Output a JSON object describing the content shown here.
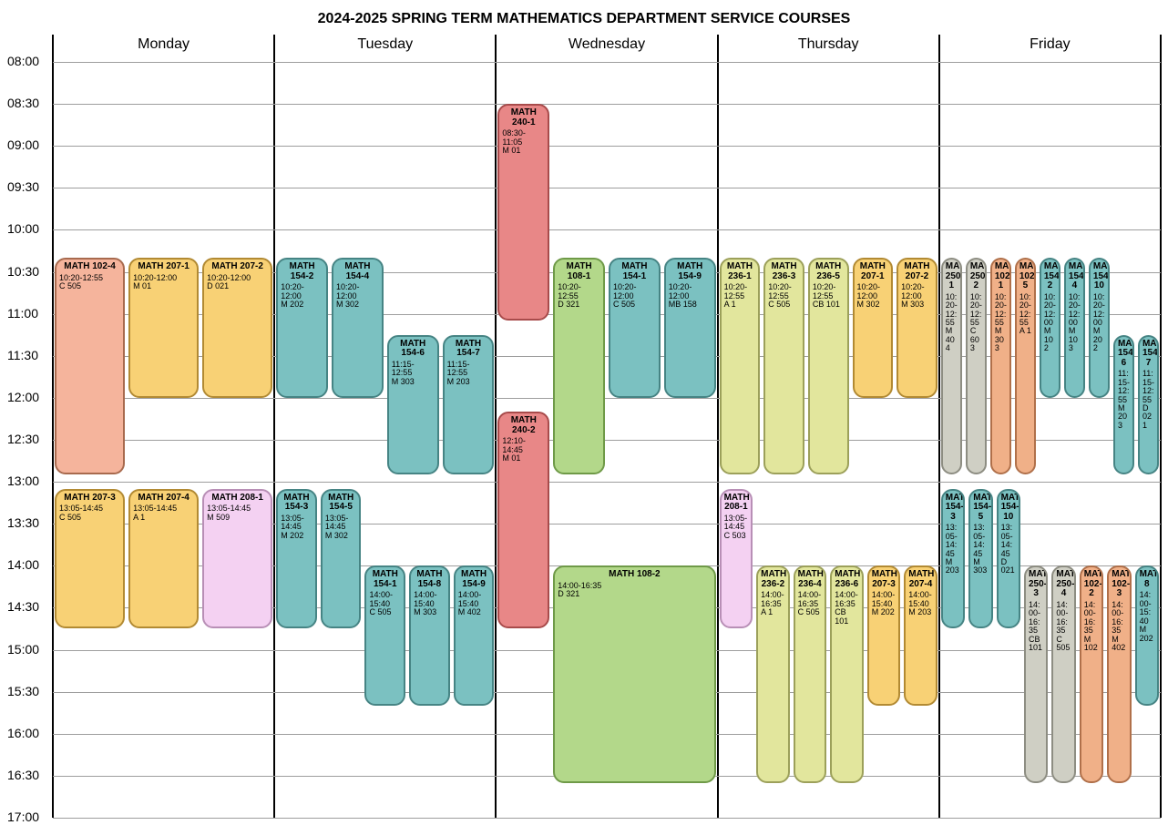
{
  "title": "2024-2025 SPRING TERM MATHEMATICS DEPARTMENT SERVICE COURSES",
  "layout": {
    "timeColWidth": 50,
    "dayWidth": 243.2,
    "headerHeight": 30,
    "minutesStart": 480,
    "minutesEnd": 1020,
    "pxPerMinute": 1.537,
    "blockGap": 2
  },
  "days": [
    "Monday",
    "Tuesday",
    "Wednesday",
    "Thursday",
    "Friday"
  ],
  "timeSlots": [
    "08:00",
    "08:30",
    "09:00",
    "09:30",
    "10:00",
    "10:30",
    "11:00",
    "11:30",
    "12:00",
    "12:30",
    "13:00",
    "13:30",
    "14:00",
    "14:30",
    "15:00",
    "15:30",
    "16:00",
    "16:30",
    "17:00"
  ],
  "colors": {
    "salmon": {
      "fill": "#f5b49c",
      "border": "#a86a4e"
    },
    "amber": {
      "fill": "#f8d175",
      "border": "#b28a33"
    },
    "teal": {
      "fill": "#7bc1c1",
      "border": "#468484"
    },
    "red": {
      "fill": "#e88787",
      "border": "#a84b4b"
    },
    "green": {
      "fill": "#b3d88a",
      "border": "#6f9a48"
    },
    "olive": {
      "fill": "#e2e69d",
      "border": "#9ca05a"
    },
    "pink": {
      "fill": "#f4d1f2",
      "border": "#b88fb6"
    },
    "grey": {
      "fill": "#cfcfc4",
      "border": "#8d8d82"
    },
    "orange": {
      "fill": "#f0b088",
      "border": "#b0704a"
    }
  },
  "blocks": [
    {
      "day": 0,
      "lane": 0,
      "lanes": 3,
      "code": "MATH 102-4",
      "time": "10:20-12:55",
      "room": "C 505",
      "start": 620,
      "end": 775,
      "color": "salmon"
    },
    {
      "day": 0,
      "lane": 1,
      "lanes": 3,
      "code": "MATH 207-1",
      "time": "10:20-12:00",
      "room": "M 01",
      "start": 620,
      "end": 720,
      "color": "amber"
    },
    {
      "day": 0,
      "lane": 2,
      "lanes": 3,
      "code": "MATH 207-2",
      "time": "10:20-12:00",
      "room": "D 021",
      "start": 620,
      "end": 720,
      "color": "amber"
    },
    {
      "day": 0,
      "lane": 0,
      "lanes": 3,
      "code": "MATH 207-3",
      "time": "13:05-14:45",
      "room": "C 505",
      "start": 785,
      "end": 885,
      "color": "amber"
    },
    {
      "day": 0,
      "lane": 1,
      "lanes": 3,
      "code": "MATH 207-4",
      "time": "13:05-14:45",
      "room": "A 1",
      "start": 785,
      "end": 885,
      "color": "amber"
    },
    {
      "day": 0,
      "lane": 2,
      "lanes": 3,
      "code": "MATH 208-1",
      "time": "13:05-14:45",
      "room": "M 509",
      "start": 785,
      "end": 885,
      "color": "pink"
    },
    {
      "day": 1,
      "lane": 0,
      "lanes": 4,
      "code": "MATH 154-2",
      "time": "10:20-12:00",
      "room": "M 202",
      "start": 620,
      "end": 720,
      "color": "teal"
    },
    {
      "day": 1,
      "lane": 1,
      "lanes": 4,
      "code": "MATH 154-4",
      "time": "10:20-12:00",
      "room": "M 302",
      "start": 620,
      "end": 720,
      "color": "teal"
    },
    {
      "day": 1,
      "lane": 2,
      "lanes": 4,
      "code": "MATH 154-6",
      "time": "11:15-12:55",
      "room": "M 303",
      "start": 675,
      "end": 775,
      "color": "teal"
    },
    {
      "day": 1,
      "lane": 3,
      "lanes": 4,
      "code": "MATH 154-7",
      "time": "11:15-12:55",
      "room": "M 203",
      "start": 675,
      "end": 775,
      "color": "teal"
    },
    {
      "day": 1,
      "lane": 0,
      "lanes": 5,
      "code": "MATH 154-3",
      "time": "13:05-14:45",
      "room": "M 202",
      "start": 785,
      "end": 885,
      "color": "teal"
    },
    {
      "day": 1,
      "lane": 1,
      "lanes": 5,
      "code": "MATH 154-5",
      "time": "13:05-14:45",
      "room": "M 302",
      "start": 785,
      "end": 885,
      "color": "teal"
    },
    {
      "day": 1,
      "lane": 2,
      "lanes": 5,
      "code": "MATH 154-1",
      "time": "14:00-15:40",
      "room": "C 505",
      "start": 840,
      "end": 940,
      "color": "teal"
    },
    {
      "day": 1,
      "lane": 3,
      "lanes": 5,
      "code": "MATH 154-8",
      "time": "14:00-15:40",
      "room": "M 303",
      "start": 840,
      "end": 940,
      "color": "teal"
    },
    {
      "day": 1,
      "lane": 4,
      "lanes": 5,
      "code": "MATH 154-9",
      "time": "14:00-15:40",
      "room": "M 402",
      "start": 840,
      "end": 940,
      "color": "teal"
    },
    {
      "day": 2,
      "lane": 0,
      "lanes": 4,
      "code": "MATH 240-1",
      "time": "08:30-11:05",
      "room": "M 01",
      "start": 510,
      "end": 665,
      "color": "red"
    },
    {
      "day": 2,
      "lane": 1,
      "lanes": 4,
      "code": "MATH 108-1",
      "time": "10:20-12:55",
      "room": "D 321",
      "start": 620,
      "end": 775,
      "color": "green"
    },
    {
      "day": 2,
      "lane": 2,
      "lanes": 4,
      "code": "MATH 154-1",
      "time": "10:20-12:00",
      "room": "C 505",
      "start": 620,
      "end": 720,
      "color": "teal"
    },
    {
      "day": 2,
      "lane": 3,
      "lanes": 4,
      "code": "MATH 154-9",
      "time": "10:20-12:00",
      "room": "MB 158",
      "start": 620,
      "end": 720,
      "color": "teal"
    },
    {
      "day": 2,
      "lane": 0,
      "lanes": 4,
      "code": "MATH 240-2",
      "time": "12:10-14:45",
      "room": "M 01",
      "start": 730,
      "end": 885,
      "color": "red"
    },
    {
      "day": 2,
      "lane": 1,
      "lanes": 4,
      "span": 3,
      "code": "MATH 108-2",
      "time": "14:00-16:35",
      "room": "D 321",
      "start": 840,
      "end": 995,
      "color": "green"
    },
    {
      "day": 3,
      "lane": 0,
      "lanes": 5,
      "code": "MATH 236-1",
      "time": "10:20-12:55",
      "room": "A 1",
      "start": 620,
      "end": 775,
      "color": "olive"
    },
    {
      "day": 3,
      "lane": 1,
      "lanes": 5,
      "code": "MATH 236-3",
      "time": "10:20-12:55",
      "room": "C 505",
      "start": 620,
      "end": 775,
      "color": "olive"
    },
    {
      "day": 3,
      "lane": 2,
      "lanes": 5,
      "code": "MATH 236-5",
      "time": "10:20-12:55",
      "room": "CB 101",
      "start": 620,
      "end": 775,
      "color": "olive"
    },
    {
      "day": 3,
      "lane": 3,
      "lanes": 5,
      "code": "MATH 207-1",
      "time": "10:20-12:00",
      "room": "M 302",
      "start": 620,
      "end": 720,
      "color": "amber"
    },
    {
      "day": 3,
      "lane": 4,
      "lanes": 5,
      "code": "MATH 207-2",
      "time": "10:20-12:00",
      "room": "M 303",
      "start": 620,
      "end": 720,
      "color": "amber"
    },
    {
      "day": 3,
      "lane": 0,
      "lanes": 6,
      "code": "MATH 208-1",
      "time": "13:05-14:45",
      "room": "C 503",
      "start": 785,
      "end": 885,
      "color": "pink"
    },
    {
      "day": 3,
      "lane": 1,
      "lanes": 6,
      "code": "MATH 236-2",
      "time": "14:00-16:35",
      "room": "A 1",
      "start": 840,
      "end": 995,
      "color": "olive"
    },
    {
      "day": 3,
      "lane": 2,
      "lanes": 6,
      "code": "MATH 236-4",
      "time": "14:00-16:35",
      "room": "C 505",
      "start": 840,
      "end": 995,
      "color": "olive"
    },
    {
      "day": 3,
      "lane": 3,
      "lanes": 6,
      "code": "MATH 236-6",
      "time": "14:00-16:35",
      "room": "CB 101",
      "start": 840,
      "end": 995,
      "color": "olive"
    },
    {
      "day": 3,
      "lane": 4,
      "lanes": 6,
      "code": "MATH 207-3",
      "time": "14:00-15:40",
      "room": "M 202",
      "start": 840,
      "end": 940,
      "color": "amber"
    },
    {
      "day": 3,
      "lane": 5,
      "lanes": 6,
      "code": "MATH 207-4",
      "time": "14:00-15:40",
      "room": "M 203",
      "start": 840,
      "end": 940,
      "color": "amber"
    },
    {
      "day": 4,
      "lane": 0,
      "lanes": 9,
      "code": "MATH 250-1",
      "time": "10:20-12:55",
      "room": "M 404",
      "start": 620,
      "end": 775,
      "color": "grey"
    },
    {
      "day": 4,
      "lane": 1,
      "lanes": 9,
      "code": "MATH 250-2",
      "time": "10:20-12:55",
      "room": "C 603",
      "start": 620,
      "end": 775,
      "color": "grey"
    },
    {
      "day": 4,
      "lane": 2,
      "lanes": 9,
      "code": "MATH 102-1",
      "time": "10:20-12:55",
      "room": "M 303",
      "start": 620,
      "end": 775,
      "color": "orange"
    },
    {
      "day": 4,
      "lane": 3,
      "lanes": 9,
      "code": "MATH 102-5",
      "time": "10:20-12:55",
      "room": "A 1",
      "start": 620,
      "end": 775,
      "color": "orange"
    },
    {
      "day": 4,
      "lane": 4,
      "lanes": 9,
      "code": "MATH 154-2",
      "time": "10:20-12:00",
      "room": "M 102",
      "start": 620,
      "end": 720,
      "color": "teal"
    },
    {
      "day": 4,
      "lane": 5,
      "lanes": 9,
      "code": "MATH 154-4",
      "time": "10:20-12:00",
      "room": "M 103",
      "start": 620,
      "end": 720,
      "color": "teal"
    },
    {
      "day": 4,
      "lane": 6,
      "lanes": 9,
      "code": "MATH 154-10",
      "time": "10:20-12:00",
      "room": "M 202",
      "start": 620,
      "end": 720,
      "color": "teal"
    },
    {
      "day": 4,
      "lane": 7,
      "lanes": 9,
      "code": "MATH 154-6",
      "time": "11:15-12:55",
      "room": "M 203",
      "start": 675,
      "end": 775,
      "color": "teal"
    },
    {
      "day": 4,
      "lane": 8,
      "lanes": 9,
      "code": "MATH 154-7",
      "time": "11:15-12:55",
      "room": "D 021",
      "start": 675,
      "end": 775,
      "color": "teal"
    },
    {
      "day": 4,
      "lane": 0,
      "lanes": 8,
      "code": "MATH 154-3",
      "time": "13:05-14:45",
      "room": "M 203",
      "start": 785,
      "end": 885,
      "color": "teal"
    },
    {
      "day": 4,
      "lane": 1,
      "lanes": 8,
      "code": "MATH 154-5",
      "time": "13:05-14:45",
      "room": "M 303",
      "start": 785,
      "end": 885,
      "color": "teal"
    },
    {
      "day": 4,
      "lane": 2,
      "lanes": 8,
      "code": "MATH 154-10",
      "time": "13:05-14:45",
      "room": "D 021",
      "start": 785,
      "end": 885,
      "color": "teal"
    },
    {
      "day": 4,
      "lane": 3,
      "lanes": 8,
      "code": "MATH 250-3",
      "time": "14:00-16:35",
      "room": "CB 101",
      "start": 840,
      "end": 995,
      "color": "grey"
    },
    {
      "day": 4,
      "lane": 4,
      "lanes": 8,
      "code": "MATH 250-4",
      "time": "14:00-16:35",
      "room": "C 505",
      "start": 840,
      "end": 995,
      "color": "grey"
    },
    {
      "day": 4,
      "lane": 5,
      "lanes": 8,
      "code": "MATH 102-2",
      "time": "14:00-16:35",
      "room": "M 102",
      "start": 840,
      "end": 995,
      "color": "orange"
    },
    {
      "day": 4,
      "lane": 6,
      "lanes": 8,
      "code": "MATH 102-3",
      "time": "14:00-16:35",
      "room": "M 402",
      "start": 840,
      "end": 995,
      "color": "orange"
    },
    {
      "day": 4,
      "lane": 7,
      "lanes": 8,
      "code": "MATH154-8",
      "time": "14:00-15:40",
      "room": "M 202",
      "start": 840,
      "end": 940,
      "color": "teal"
    }
  ]
}
